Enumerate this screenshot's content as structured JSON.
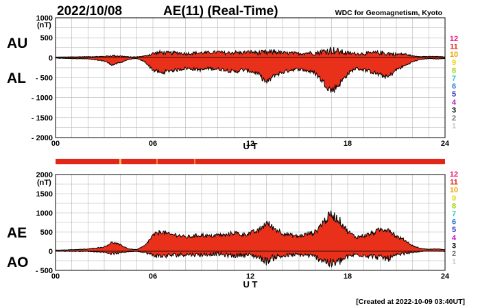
{
  "header": {
    "date": "2022/10/08",
    "title": "AE(11) (Real-Time)",
    "source": "WDC for Geomagnetism, Kyoto"
  },
  "footer": {
    "created": "[Created at 2022-10-09 03:40UT]"
  },
  "legend": {
    "levels": [
      {
        "label": "12",
        "color": "#e8197a"
      },
      {
        "label": "11",
        "color": "#e3261a"
      },
      {
        "label": "10",
        "color": "#f0a000"
      },
      {
        "label": "9",
        "color": "#e8d400"
      },
      {
        "label": "8",
        "color": "#9ad200"
      },
      {
        "label": "7",
        "color": "#2ec6c0"
      },
      {
        "label": "6",
        "color": "#1e73d8"
      },
      {
        "label": "5",
        "color": "#3030c0"
      },
      {
        "label": "4",
        "color": "#c010c8"
      },
      {
        "label": "3",
        "color": "#000000"
      },
      {
        "label": "2",
        "color": "#707070"
      },
      {
        "label": "1",
        "color": "#c8c8c8"
      }
    ]
  },
  "chart_data": [
    {
      "type": "area",
      "panel": "AU/AL",
      "labels": {
        "upper": "AU",
        "lower": "AL"
      },
      "unit_label": "(nT)",
      "xlabel": "U T",
      "xlim": [
        0,
        24
      ],
      "ylim": [
        -2000,
        1000
      ],
      "x_ticks": [
        0,
        6,
        12,
        18,
        24
      ],
      "x_tick_labels": [
        "00",
        "06",
        "12",
        "18",
        "24"
      ],
      "y_ticks": [
        1000,
        500,
        0,
        -500,
        -1000,
        -1500,
        -2000
      ],
      "y_tick_labels": [
        "1000",
        "500",
        "0",
        "- 500",
        "- 1000",
        "- 1500",
        "- 2000"
      ],
      "grid": true,
      "fill_color": "#e8301a",
      "series": [
        {
          "name": "AU",
          "x": [
            0,
            1,
            2,
            3,
            3.5,
            4,
            4.5,
            5,
            5.5,
            6,
            6.5,
            7,
            7.5,
            8,
            8.5,
            9,
            9.5,
            10,
            10.5,
            11,
            11.5,
            12,
            12.5,
            13,
            13.5,
            14,
            14.5,
            15,
            15.5,
            16,
            16.5,
            17,
            17.5,
            18,
            18.5,
            19,
            19.5,
            20,
            20.5,
            21,
            21.5,
            22,
            22.5,
            23,
            23.5,
            24
          ],
          "values": [
            15,
            20,
            25,
            30,
            50,
            40,
            20,
            20,
            40,
            100,
            130,
            110,
            120,
            100,
            110,
            120,
            120,
            140,
            110,
            130,
            120,
            140,
            120,
            110,
            150,
            110,
            110,
            100,
            120,
            110,
            150,
            180,
            140,
            110,
            100,
            100,
            110,
            120,
            100,
            80,
            90,
            40,
            30,
            30,
            30,
            20
          ]
        },
        {
          "name": "AL",
          "x": [
            0,
            1,
            2,
            3,
            3.5,
            4,
            4.5,
            5,
            5.5,
            6,
            6.5,
            7,
            7.5,
            8,
            8.5,
            9,
            9.5,
            10,
            10.5,
            11,
            11.5,
            12,
            12.5,
            13,
            13.5,
            14,
            14.5,
            15,
            15.5,
            16,
            16.5,
            17,
            17.5,
            18,
            18.5,
            19,
            19.5,
            20,
            20.5,
            21,
            21.5,
            22,
            22.5,
            23,
            23.5,
            24
          ],
          "values": [
            -10,
            -20,
            -30,
            -80,
            -180,
            -120,
            -40,
            -20,
            -100,
            -300,
            -380,
            -320,
            -300,
            -260,
            -280,
            -300,
            -260,
            -280,
            -300,
            -350,
            -300,
            -330,
            -400,
            -620,
            -430,
            -360,
            -300,
            -280,
            -320,
            -380,
            -600,
            -820,
            -650,
            -400,
            -260,
            -300,
            -350,
            -430,
            -480,
            -300,
            -200,
            -100,
            -40,
            -20,
            -30,
            -20
          ]
        }
      ]
    },
    {
      "type": "area",
      "panel": "AE/AO",
      "labels": {
        "upper": "AE",
        "lower": "AO"
      },
      "unit_label": "(nT)",
      "xlabel": "U T",
      "xlim": [
        0,
        24
      ],
      "ylim": [
        -500,
        2000
      ],
      "x_ticks": [
        0,
        6,
        12,
        18,
        24
      ],
      "x_tick_labels": [
        "00",
        "06",
        "12",
        "18",
        "24"
      ],
      "y_ticks": [
        2000,
        1500,
        1000,
        500,
        0,
        -500
      ],
      "y_tick_labels": [
        "2000",
        "1500",
        "1000",
        "500",
        "0",
        "- 500"
      ],
      "grid": true,
      "fill_color": "#e8301a",
      "series": [
        {
          "name": "AE",
          "x": [
            0,
            1,
            2,
            3,
            3.5,
            4,
            4.5,
            5,
            5.5,
            6,
            6.5,
            7,
            7.5,
            8,
            8.5,
            9,
            9.5,
            10,
            10.5,
            11,
            11.5,
            12,
            12.5,
            13,
            13.5,
            14,
            14.5,
            15,
            15.5,
            16,
            16.5,
            17,
            17.5,
            18,
            18.5,
            19,
            19.5,
            20,
            20.5,
            21,
            21.5,
            22,
            22.5,
            23,
            23.5,
            24
          ],
          "values": [
            25,
            40,
            55,
            110,
            230,
            160,
            60,
            40,
            140,
            400,
            510,
            430,
            420,
            360,
            390,
            420,
            380,
            420,
            410,
            480,
            420,
            470,
            520,
            730,
            580,
            470,
            410,
            380,
            440,
            490,
            750,
            950,
            790,
            510,
            360,
            400,
            460,
            550,
            580,
            380,
            290,
            140,
            70,
            50,
            60,
            40
          ]
        },
        {
          "name": "AO",
          "x": [
            0,
            1,
            2,
            3,
            3.5,
            4,
            4.5,
            5,
            5.5,
            6,
            6.5,
            7,
            7.5,
            8,
            8.5,
            9,
            9.5,
            10,
            10.5,
            11,
            11.5,
            12,
            12.5,
            13,
            13.5,
            14,
            14.5,
            15,
            15.5,
            16,
            16.5,
            17,
            17.5,
            18,
            18.5,
            19,
            19.5,
            20,
            20.5,
            21,
            21.5,
            22,
            22.5,
            23,
            23.5,
            24
          ],
          "values": [
            2,
            0,
            -2,
            -25,
            -65,
            -40,
            -10,
            0,
            -30,
            -100,
            -125,
            -105,
            -90,
            -80,
            -85,
            -90,
            -70,
            -70,
            -95,
            -110,
            -90,
            -95,
            -140,
            -255,
            -140,
            -125,
            -95,
            -90,
            -100,
            -135,
            -225,
            -320,
            -255,
            -145,
            -80,
            -100,
            -120,
            -155,
            -190,
            -110,
            -55,
            -30,
            -5,
            5,
            0,
            0
          ]
        }
      ]
    }
  ]
}
